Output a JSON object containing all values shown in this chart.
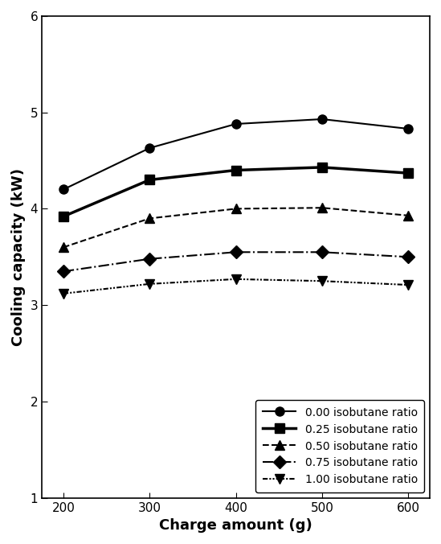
{
  "x": [
    200,
    300,
    400,
    500,
    600
  ],
  "series": [
    {
      "label": "0.00 isobutane ratio",
      "y": [
        4.2,
        4.63,
        4.88,
        4.93,
        4.83
      ],
      "marker": "o",
      "linewidth": 1.5,
      "markersize": 8
    },
    {
      "label": "0.25 isobutane ratio",
      "y": [
        3.92,
        4.3,
        4.4,
        4.43,
        4.37
      ],
      "marker": "s",
      "linewidth": 2.5,
      "markersize": 8
    },
    {
      "label": "0.50 isobutane ratio",
      "y": [
        3.6,
        3.9,
        4.0,
        4.01,
        3.93
      ],
      "marker": "^",
      "linewidth": 1.5,
      "markersize": 8
    },
    {
      "label": "0.75 isobutane ratio",
      "y": [
        3.35,
        3.48,
        3.55,
        3.55,
        3.5
      ],
      "marker": "D",
      "linewidth": 1.5,
      "markersize": 8
    },
    {
      "label": "1.00 isobutane ratio",
      "y": [
        3.12,
        3.22,
        3.27,
        3.25,
        3.21
      ],
      "marker": "v",
      "linewidth": 1.5,
      "markersize": 8
    }
  ],
  "xlabel": "Charge amount (g)",
  "ylabel": "Cooling capacity (kW)",
  "xlim": [
    175,
    625
  ],
  "ylim": [
    1,
    6
  ],
  "yticks": [
    1,
    2,
    3,
    4,
    5,
    6
  ],
  "xticks": [
    200,
    300,
    400,
    500,
    600
  ],
  "color": "#000000"
}
